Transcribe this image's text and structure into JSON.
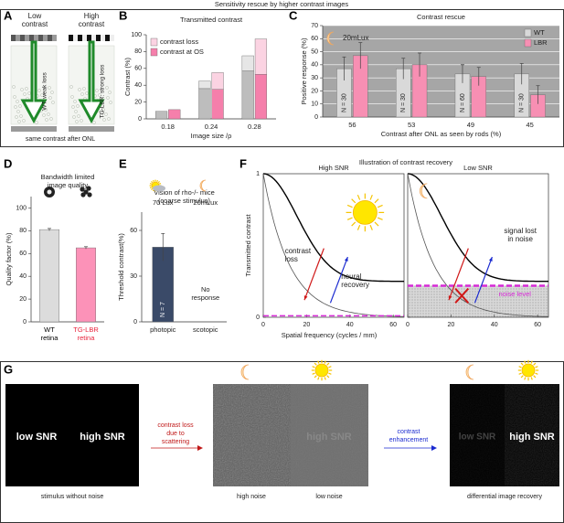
{
  "title": "Sensitivity rescue by higher contrast images",
  "panel_labels": [
    "A",
    "B",
    "C",
    "D",
    "E",
    "F",
    "G"
  ],
  "panel_a": {
    "left": [
      "Low",
      "contrast"
    ],
    "right": [
      "High",
      "contrast"
    ],
    "left_arrow": "WT: weak loss",
    "right_arrow": "TG-LBR: strong loss",
    "caption": "same contrast after ONL"
  },
  "chart_data": [
    {
      "type": "bar",
      "title": "Transmitted contrast",
      "xlabel": "Image size /ρ",
      "ylabel": "Contrast (%)",
      "categories": [
        "0.18",
        "0.24",
        "0.28"
      ],
      "series": [
        {
          "color": "#bdbdbd",
          "stack": "wt",
          "values": [
            9,
            36,
            57
          ]
        },
        {
          "color": "#e6e6e6",
          "stack": "wt",
          "values": [
            0,
            9,
            18
          ]
        },
        {
          "name": "contrast at OS",
          "color": "#f57fab",
          "stack": "lbr",
          "values": [
            11,
            35,
            53
          ]
        },
        {
          "name": "contrast loss",
          "color": "#fbd3e2",
          "stack": "lbr",
          "values": [
            0,
            20,
            42
          ]
        }
      ],
      "ylim": [
        0,
        100
      ],
      "yticks": [
        0,
        20,
        40,
        60,
        80,
        100
      ],
      "legend": "upper left"
    },
    {
      "type": "bar",
      "title": "Contrast rescue",
      "annotation": "20mLux",
      "xlabel": "Contrast after ONL as seen by rods (%)",
      "ylabel": "Positive response (%)",
      "categories": [
        "56",
        "53",
        "49",
        "45"
      ],
      "series": [
        {
          "name": "WT",
          "color": "#d9d9d9",
          "values": [
            37,
            37,
            33,
            33
          ],
          "errors": [
            9,
            8,
            7,
            8
          ]
        },
        {
          "name": "LBR",
          "color": "#f78fb3",
          "values": [
            47,
            40,
            31,
            17
          ],
          "errors": [
            10,
            9,
            7,
            7
          ]
        }
      ],
      "bar_labels": [
        "N = 30",
        "N = 30",
        "N = 60",
        "N = 30"
      ],
      "ylim": [
        0,
        70
      ],
      "yticks": [
        0,
        10,
        20,
        30,
        40,
        50,
        60,
        70
      ],
      "grid": true,
      "background": "#a6a6a6",
      "legend": "upper right"
    },
    {
      "type": "bar",
      "title": [
        "Bandwidth limited",
        "image quality"
      ],
      "ylabel": "Quality factor (%)",
      "categories": [
        [
          "WT",
          "retina"
        ],
        [
          "TG-LBR",
          "retina"
        ]
      ],
      "category_colors": [
        "#000000",
        "#e8233c"
      ],
      "series": [
        {
          "colors": [
            "#dcdcdc",
            "#fc92b8"
          ],
          "values": [
            81,
            65
          ],
          "errors": [
            1,
            1
          ]
        }
      ],
      "ylim": [
        0,
        110
      ],
      "yticks": [
        0,
        20,
        40,
        60,
        80,
        100
      ]
    },
    {
      "type": "bar",
      "title": [
        "Vision of rho-/- mice",
        "(coarse stimulus)"
      ],
      "ylabel": "Threshold contrast(%)",
      "categories": [
        "photopic",
        "scotopic"
      ],
      "condition_labels": [
        "70 Lux",
        "20mLux"
      ],
      "series": [
        {
          "color": "#3a4a68",
          "values": [
            49,
            null
          ],
          "errors": [
            9,
            null
          ]
        }
      ],
      "bar_labels": [
        "N = 7",
        [
          "No",
          "response"
        ]
      ],
      "ylim": [
        0,
        72
      ],
      "yticks": [
        0,
        30,
        60
      ]
    },
    {
      "type": "illustration",
      "title": "Illustration of contrast recovery",
      "subtitles": [
        "High SNR",
        "Low SNR"
      ],
      "xlabel": "Spatial frequency (cycles / mm)",
      "ylabel": "Transmitted contrast",
      "xlim": [
        0,
        65
      ],
      "ylim": [
        0,
        1
      ],
      "xticks": [
        0,
        20,
        40,
        60
      ],
      "yticks": [
        0,
        1
      ],
      "annotations": {
        "contrast_loss": [
          "contrast",
          "loss"
        ],
        "neural_recovery": [
          "neural",
          "recovery"
        ],
        "signal_lost": [
          "signal lost",
          "in noise"
        ],
        "noise_level": "noise level"
      }
    }
  ],
  "panel_g": {
    "low_snr": "low SNR",
    "high_snr": "high SNR",
    "loss_label": [
      "contrast loss",
      "due to",
      "scattering"
    ],
    "middle_faded": "high SNR",
    "enh_label": [
      "contrast",
      "enhancement"
    ],
    "right_low": "low SNR",
    "right_high": "high SNR",
    "captions": [
      "stimulus without noise",
      "high noise",
      "low noise",
      "differential image recovery"
    ]
  }
}
